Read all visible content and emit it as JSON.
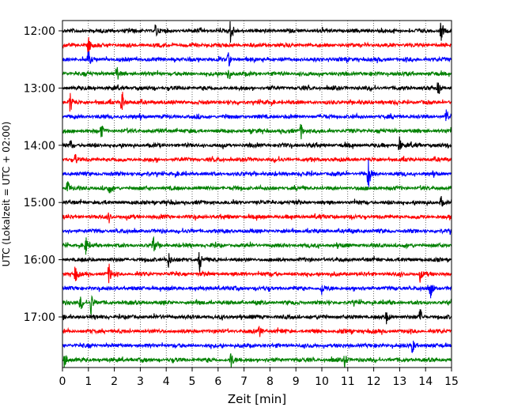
{
  "chart_data": {
    "type": "line",
    "title": "",
    "xlabel": "Zeit  [min]",
    "ylabel": "UTC (Lokalzeit = UTC + 02:00)",
    "xlim": [
      0,
      15
    ],
    "x_ticks": [
      0,
      1,
      2,
      3,
      4,
      5,
      6,
      7,
      8,
      9,
      10,
      11,
      12,
      13,
      14,
      15
    ],
    "y_tick_labels": [
      "12:00",
      "13:00",
      "14:00",
      "15:00",
      "16:00",
      "17:00"
    ],
    "grid": "vertical dotted at each minute",
    "colors": [
      "#000000",
      "#ff0000",
      "#0000ff",
      "#008000"
    ],
    "traces_start": "12:00",
    "trace_interval_minutes": 15,
    "trace_count": 24,
    "events": [
      {
        "trace": 0,
        "t": 3.6,
        "amp": 0.5
      },
      {
        "trace": 0,
        "t": 6.5,
        "amp": 0.9
      },
      {
        "trace": 0,
        "t": 14.6,
        "amp": 0.6
      },
      {
        "trace": 1,
        "t": 1.0,
        "amp": 0.6
      },
      {
        "trace": 2,
        "t": 1.0,
        "amp": 0.55
      },
      {
        "trace": 2,
        "t": 6.4,
        "amp": 0.5
      },
      {
        "trace": 3,
        "t": 2.1,
        "amp": 0.5
      },
      {
        "trace": 3,
        "t": 6.4,
        "amp": 0.6
      },
      {
        "trace": 4,
        "t": 14.5,
        "amp": 0.5
      },
      {
        "trace": 5,
        "t": 0.3,
        "amp": 0.7
      },
      {
        "trace": 5,
        "t": 2.3,
        "amp": 0.8
      },
      {
        "trace": 6,
        "t": 14.8,
        "amp": 0.55
      },
      {
        "trace": 7,
        "t": 1.5,
        "amp": 0.4
      },
      {
        "trace": 7,
        "t": 9.2,
        "amp": 0.5
      },
      {
        "trace": 8,
        "t": 0.3,
        "amp": 0.4
      },
      {
        "trace": 8,
        "t": 13.0,
        "amp": 0.5
      },
      {
        "trace": 9,
        "t": 0.5,
        "amp": 0.4
      },
      {
        "trace": 10,
        "t": 11.8,
        "amp": 1.0
      },
      {
        "trace": 11,
        "t": 0.2,
        "amp": 0.5
      },
      {
        "trace": 11,
        "t": 1.8,
        "amp": 0.3
      },
      {
        "trace": 12,
        "t": 14.6,
        "amp": 0.4
      },
      {
        "trace": 13,
        "t": 1.8,
        "amp": 0.3
      },
      {
        "trace": 15,
        "t": 0.9,
        "amp": 0.5
      },
      {
        "trace": 15,
        "t": 3.5,
        "amp": 0.5
      },
      {
        "trace": 16,
        "t": 4.1,
        "amp": 0.5
      },
      {
        "trace": 16,
        "t": 5.3,
        "amp": 0.8
      },
      {
        "trace": 17,
        "t": 0.5,
        "amp": 0.5
      },
      {
        "trace": 17,
        "t": 1.8,
        "amp": 0.6
      },
      {
        "trace": 17,
        "t": 13.8,
        "amp": 0.4
      },
      {
        "trace": 18,
        "t": 10.0,
        "amp": 0.4
      },
      {
        "trace": 18,
        "t": 14.2,
        "amp": 0.6
      },
      {
        "trace": 19,
        "t": 0.7,
        "amp": 0.5
      },
      {
        "trace": 19,
        "t": 1.1,
        "amp": 0.8
      },
      {
        "trace": 20,
        "t": 13.8,
        "amp": 0.5
      },
      {
        "trace": 20,
        "t": 12.5,
        "amp": 0.4
      },
      {
        "trace": 21,
        "t": 7.6,
        "amp": 0.4
      },
      {
        "trace": 22,
        "t": 13.5,
        "amp": 0.5
      },
      {
        "trace": 23,
        "t": 0.1,
        "amp": 0.5
      },
      {
        "trace": 23,
        "t": 6.5,
        "amp": 0.6
      },
      {
        "trace": 23,
        "t": 10.9,
        "amp": 0.5
      }
    ]
  }
}
